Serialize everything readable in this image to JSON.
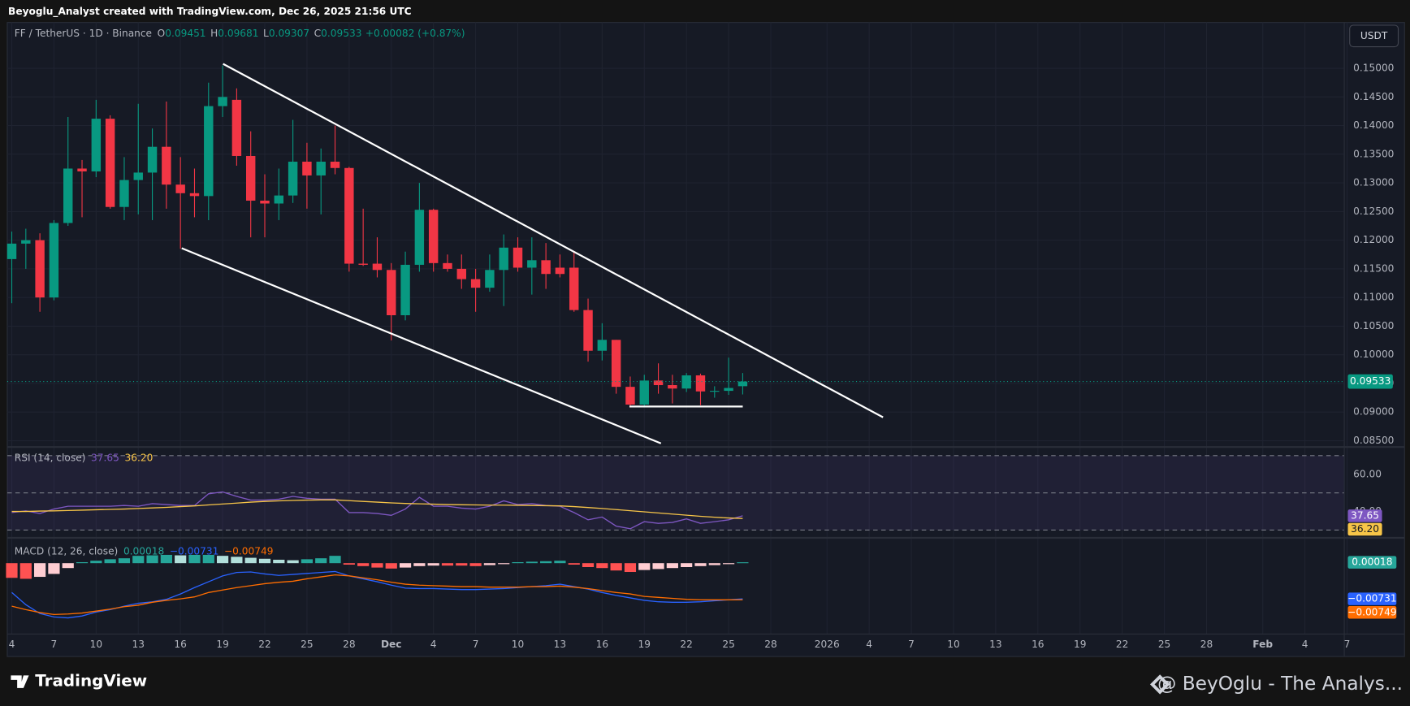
{
  "header": "Beyoglu_Analyst created with TradingView.com, Dec 26, 2025 21:56 UTC",
  "brand": "TradingView",
  "watermark": "@ BeyOglu - The Analys...",
  "chart_data": [
    {
      "type": "candlestick",
      "title": "FF / TetherUS · 1D · Binance",
      "currency": "USDT",
      "ohlc_labels": [
        "O",
        "H",
        "L",
        "C"
      ],
      "change_label": "+0.00082 (+0.87%)",
      "up_color": "#089981",
      "down_color": "#f23645",
      "x": [
        0,
        1,
        2,
        3,
        4,
        5,
        6,
        7,
        8,
        9,
        10,
        11,
        12,
        13,
        14,
        15,
        16,
        17,
        18,
        19,
        20,
        21,
        22,
        23,
        24,
        25,
        26,
        27,
        28,
        29,
        30,
        31,
        32,
        33,
        34,
        35,
        36,
        37,
        38,
        39,
        40,
        41,
        42,
        43,
        44,
        45,
        46,
        47,
        48,
        49,
        50,
        51,
        52
      ],
      "open": [
        0.1167,
        0.1194,
        0.12,
        0.11,
        0.123,
        0.1325,
        0.132,
        0.1412,
        0.1258,
        0.1305,
        0.1318,
        0.1363,
        0.1297,
        0.1282,
        0.1277,
        0.1434,
        0.1445,
        0.1347,
        0.1269,
        0.1264,
        0.1278,
        0.1337,
        0.1313,
        0.1337,
        0.1326,
        0.1159,
        0.1159,
        0.1148,
        0.1069,
        0.1157,
        0.1253,
        0.116,
        0.115,
        0.1132,
        0.1117,
        0.1148,
        0.1187,
        0.1152,
        0.1165,
        0.1152,
        0.1152,
        0.1078,
        0.1007,
        0.1026,
        0.0944,
        0.0913,
        0.0955,
        0.0947,
        0.0941,
        0.0964,
        0.0936,
        0.0937,
        0.09451
      ],
      "high": [
        0.1215,
        0.122,
        0.1212,
        0.1235,
        0.1415,
        0.134,
        0.1445,
        0.1418,
        0.1345,
        0.1438,
        0.1395,
        0.1442,
        0.1345,
        0.1325,
        0.1475,
        0.1505,
        0.1465,
        0.139,
        0.1315,
        0.1325,
        0.141,
        0.137,
        0.136,
        0.14,
        0.1328,
        0.1255,
        0.1205,
        0.116,
        0.118,
        0.13,
        0.1255,
        0.1175,
        0.1175,
        0.115,
        0.1175,
        0.121,
        0.1205,
        0.1205,
        0.1195,
        0.1175,
        0.118,
        0.1098,
        0.1055,
        0.1026,
        0.0962,
        0.0965,
        0.0985,
        0.0965,
        0.0968,
        0.0967,
        0.0945,
        0.0995,
        0.09681
      ],
      "low": [
        0.109,
        0.115,
        0.1075,
        0.1095,
        0.1225,
        0.124,
        0.131,
        0.1255,
        0.1235,
        0.1245,
        0.1235,
        0.1255,
        0.1185,
        0.124,
        0.1235,
        0.1415,
        0.133,
        0.1205,
        0.1205,
        0.1235,
        0.1265,
        0.1255,
        0.1245,
        0.1315,
        0.1145,
        0.1155,
        0.1135,
        0.1025,
        0.106,
        0.1145,
        0.1145,
        0.1145,
        0.1115,
        0.1075,
        0.111,
        0.1085,
        0.1145,
        0.1105,
        0.1115,
        0.1135,
        0.1075,
        0.0988,
        0.099,
        0.0932,
        0.0908,
        0.0908,
        0.0932,
        0.0915,
        0.0935,
        0.0912,
        0.0925,
        0.093,
        0.09307
      ],
      "close": [
        0.1194,
        0.12,
        0.11,
        0.123,
        0.1325,
        0.132,
        0.1412,
        0.1258,
        0.1305,
        0.1318,
        0.1363,
        0.1297,
        0.1282,
        0.1277,
        0.1434,
        0.145,
        0.1347,
        0.1269,
        0.1264,
        0.1278,
        0.1337,
        0.1313,
        0.1337,
        0.1326,
        0.1159,
        0.1157,
        0.1148,
        0.1069,
        0.1157,
        0.1253,
        0.116,
        0.115,
        0.1132,
        0.1117,
        0.1148,
        0.1187,
        0.1152,
        0.1165,
        0.1141,
        0.1141,
        0.1078,
        0.1007,
        0.1026,
        0.0944,
        0.0913,
        0.0955,
        0.0947,
        0.0941,
        0.0964,
        0.0936,
        0.0937,
        0.0942,
        0.09533
      ],
      "xlim": [
        -0.32,
        94.8
      ],
      "ylim": [
        0.0839,
        0.158
      ],
      "yticks": [
        {
          "value": 0.15,
          "label": "0.15000"
        },
        {
          "value": 0.145,
          "label": "0.14500"
        },
        {
          "value": 0.14,
          "label": "0.14000"
        },
        {
          "value": 0.135,
          "label": "0.13500"
        },
        {
          "value": 0.13,
          "label": "0.13000"
        },
        {
          "value": 0.125,
          "label": "0.12500"
        },
        {
          "value": 0.12,
          "label": "0.12000"
        },
        {
          "value": 0.115,
          "label": "0.11500"
        },
        {
          "value": 0.11,
          "label": "0.11000"
        },
        {
          "value": 0.105,
          "label": "0.10500"
        },
        {
          "value": 0.1,
          "label": "0.10000"
        },
        {
          "value": 0.095,
          "label": "0.09500"
        },
        {
          "value": 0.09,
          "label": "0.09000"
        },
        {
          "value": 0.085,
          "label": "0.08500"
        }
      ],
      "xticks": [
        {
          "value": 0,
          "label": "4"
        },
        {
          "value": 3,
          "label": "7"
        },
        {
          "value": 6,
          "label": "10"
        },
        {
          "value": 9,
          "label": "13"
        },
        {
          "value": 12,
          "label": "16"
        },
        {
          "value": 15,
          "label": "19"
        },
        {
          "value": 18,
          "label": "22"
        },
        {
          "value": 21,
          "label": "25"
        },
        {
          "value": 24,
          "label": "28"
        },
        {
          "value": 27,
          "label": "Dec"
        },
        {
          "value": 30,
          "label": "4"
        },
        {
          "value": 33,
          "label": "7"
        },
        {
          "value": 36,
          "label": "10"
        },
        {
          "value": 39,
          "label": "13"
        },
        {
          "value": 42,
          "label": "16"
        },
        {
          "value": 45,
          "label": "19"
        },
        {
          "value": 48,
          "label": "22"
        },
        {
          "value": 51,
          "label": "25"
        },
        {
          "value": 54,
          "label": "28"
        },
        {
          "value": 58,
          "label": "2026"
        },
        {
          "value": 61,
          "label": "4"
        },
        {
          "value": 64,
          "label": "7"
        },
        {
          "value": 67,
          "label": "10"
        },
        {
          "value": 70,
          "label": "13"
        },
        {
          "value": 73,
          "label": "16"
        },
        {
          "value": 76,
          "label": "19"
        },
        {
          "value": 79,
          "label": "22"
        },
        {
          "value": 82,
          "label": "25"
        },
        {
          "value": 85,
          "label": "28"
        },
        {
          "value": 89,
          "label": "Feb"
        },
        {
          "value": 92,
          "label": "4"
        },
        {
          "value": 95,
          "label": "7"
        }
      ],
      "grid": true
    },
    {
      "type": "line",
      "title": "RSI (14, close)",
      "ylim": [
        26.3,
        73.7
      ],
      "yticks": [
        {
          "value": 60,
          "label": "60.00"
        },
        {
          "value": 40,
          "label": "40.00"
        }
      ],
      "bands": [
        70,
        50,
        30
      ],
      "band_color": "#7e57c2",
      "series": [
        {
          "color": "#7e57c2",
          "values": [
            39.4,
            40.3,
            38.9,
            41.3,
            42.8,
            42.8,
            42.8,
            42.8,
            43.2,
            42.8,
            44.2,
            43.7,
            43.2,
            43.2,
            49.5,
            50.5,
            48.1,
            46.1,
            46.1,
            46.6,
            48.1,
            47.1,
            46.6,
            46.6,
            39.4,
            39.4,
            38.9,
            37.9,
            41.3,
            47.6,
            42.8,
            42.8,
            41.8,
            41.3,
            42.8,
            45.7,
            43.7,
            44.2,
            43.2,
            42.8,
            39.4,
            35.5,
            37.0,
            32.1,
            30.7,
            34.5,
            33.6,
            34.1,
            36.0,
            33.6,
            34.5,
            35.5,
            37.65
          ]
        },
        {
          "color": "#f7c548",
          "last_label": "36.20",
          "values": [
            40.0,
            40.0,
            40.2,
            40.3,
            40.5,
            40.7,
            40.9,
            41.1,
            41.3,
            41.6,
            41.9,
            42.2,
            42.6,
            43.0,
            43.5,
            44.0,
            44.5,
            45.0,
            45.4,
            45.7,
            45.9,
            46.1,
            46.2,
            46.2,
            45.8,
            45.4,
            45.0,
            44.6,
            44.3,
            44.1,
            43.9,
            43.7,
            43.6,
            43.5,
            43.4,
            43.4,
            43.3,
            43.2,
            43.1,
            43.0,
            42.6,
            42.1,
            41.6,
            41.0,
            40.4,
            39.8,
            39.2,
            38.6,
            38.0,
            37.4,
            36.9,
            36.5,
            36.2
          ]
        }
      ]
    },
    {
      "type": "macd",
      "title": "MACD (12, 26, close)",
      "ylim": [
        -0.0145,
        0.005
      ],
      "histogram_colors": [
        "#26a69a",
        "#b2dfdb",
        "#ff5252",
        "#ffcdd2"
      ],
      "histogram": [
        -0.003,
        -0.0032,
        -0.0028,
        -0.0022,
        -0.001,
        0.0002,
        0.0005,
        0.0008,
        0.001,
        0.0015,
        0.0016,
        0.0017,
        0.0016,
        0.0017,
        0.0017,
        0.0015,
        0.0013,
        0.0011,
        0.0009,
        0.0007,
        0.0006,
        0.0008,
        0.001,
        0.0015,
        -0.0003,
        -0.0006,
        -0.0009,
        -0.0011,
        -0.0009,
        -0.0006,
        -0.0005,
        -0.0005,
        -0.0005,
        -0.0006,
        -0.0004,
        -0.0002,
        0.0002,
        0.0003,
        0.0004,
        0.0005,
        -0.0003,
        -0.0008,
        -0.001,
        -0.0015,
        -0.0018,
        -0.0014,
        -0.0012,
        -0.001,
        -0.0008,
        -0.0006,
        -0.0004,
        -0.0002,
        0.00018
      ],
      "series": [
        {
          "color": "#2962ff",
          "last_label": "−0.00731",
          "values": [
            -0.006,
            -0.0085,
            -0.0103,
            -0.011,
            -0.0112,
            -0.0108,
            -0.01,
            -0.0095,
            -0.0088,
            -0.0082,
            -0.0079,
            -0.0074,
            -0.0063,
            -0.005,
            -0.0038,
            -0.0026,
            -0.0019,
            -0.0018,
            -0.0022,
            -0.0025,
            -0.0023,
            -0.0021,
            -0.0019,
            -0.0017,
            -0.0026,
            -0.0032,
            -0.0038,
            -0.0045,
            -0.0051,
            -0.0052,
            -0.0052,
            -0.0053,
            -0.0054,
            -0.0054,
            -0.0053,
            -0.0052,
            -0.005,
            -0.0048,
            -0.0046,
            -0.0043,
            -0.0048,
            -0.0053,
            -0.006,
            -0.0066,
            -0.0071,
            -0.0076,
            -0.0079,
            -0.008,
            -0.008,
            -0.0079,
            -0.0077,
            -0.0075,
            -0.00731
          ]
        },
        {
          "color": "#ff6d00",
          "last_label": "−0.00749",
          "values": [
            -0.0088,
            -0.0095,
            -0.0101,
            -0.0105,
            -0.0104,
            -0.0102,
            -0.0098,
            -0.0094,
            -0.0089,
            -0.0086,
            -0.008,
            -0.0076,
            -0.0073,
            -0.0069,
            -0.006,
            -0.0055,
            -0.005,
            -0.0046,
            -0.0042,
            -0.0039,
            -0.0037,
            -0.0032,
            -0.0028,
            -0.0024,
            -0.0026,
            -0.003,
            -0.0034,
            -0.0039,
            -0.0043,
            -0.0045,
            -0.0046,
            -0.0047,
            -0.0048,
            -0.0048,
            -0.0049,
            -0.0049,
            -0.0049,
            -0.0048,
            -0.0048,
            -0.0047,
            -0.0049,
            -0.0052,
            -0.0056,
            -0.006,
            -0.0063,
            -0.0068,
            -0.007,
            -0.0072,
            -0.0074,
            -0.0075,
            -0.0075,
            -0.0075,
            -0.00749
          ]
        }
      ]
    }
  ]
}
